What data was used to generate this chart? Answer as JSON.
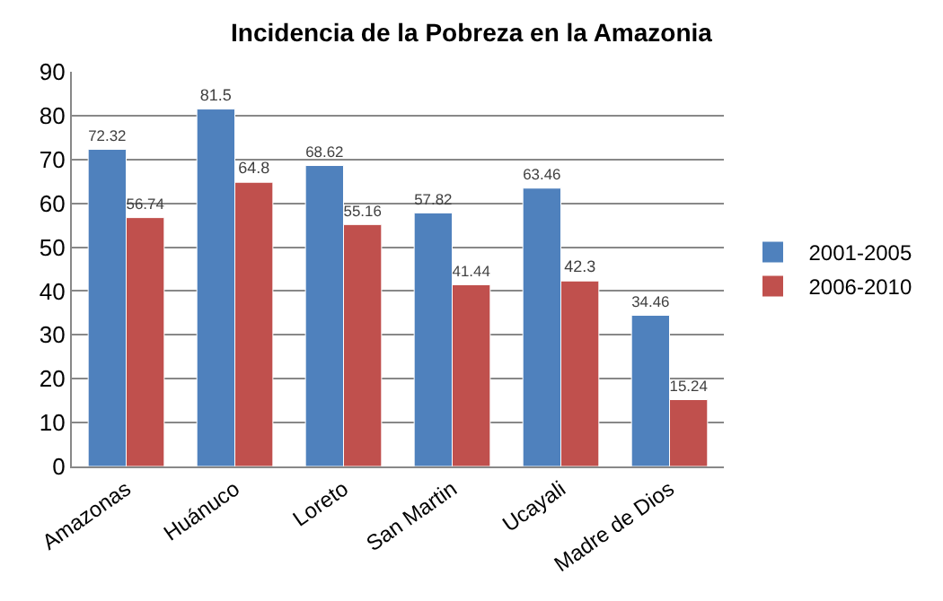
{
  "chart_data": {
    "type": "bar",
    "title": "Incidencia de la Pobreza en la Amazonia",
    "categories": [
      "Amazonas",
      "Huánuco",
      "Loreto",
      "San Martin",
      "Ucayali",
      "Madre de Dios"
    ],
    "series": [
      {
        "name": "2001-2005",
        "color": "#4f81bd",
        "values": [
          72.32,
          81.5,
          68.62,
          57.82,
          63.46,
          34.46
        ]
      },
      {
        "name": "2006-2010",
        "color": "#c0504d",
        "values": [
          56.74,
          64.8,
          55.16,
          41.44,
          42.3,
          15.24
        ]
      }
    ],
    "ylim": [
      0,
      90
    ],
    "yticks": [
      0,
      10,
      20,
      30,
      40,
      50,
      60,
      70,
      80,
      90
    ],
    "grid": "y",
    "legend": "right",
    "data_labels": true
  }
}
